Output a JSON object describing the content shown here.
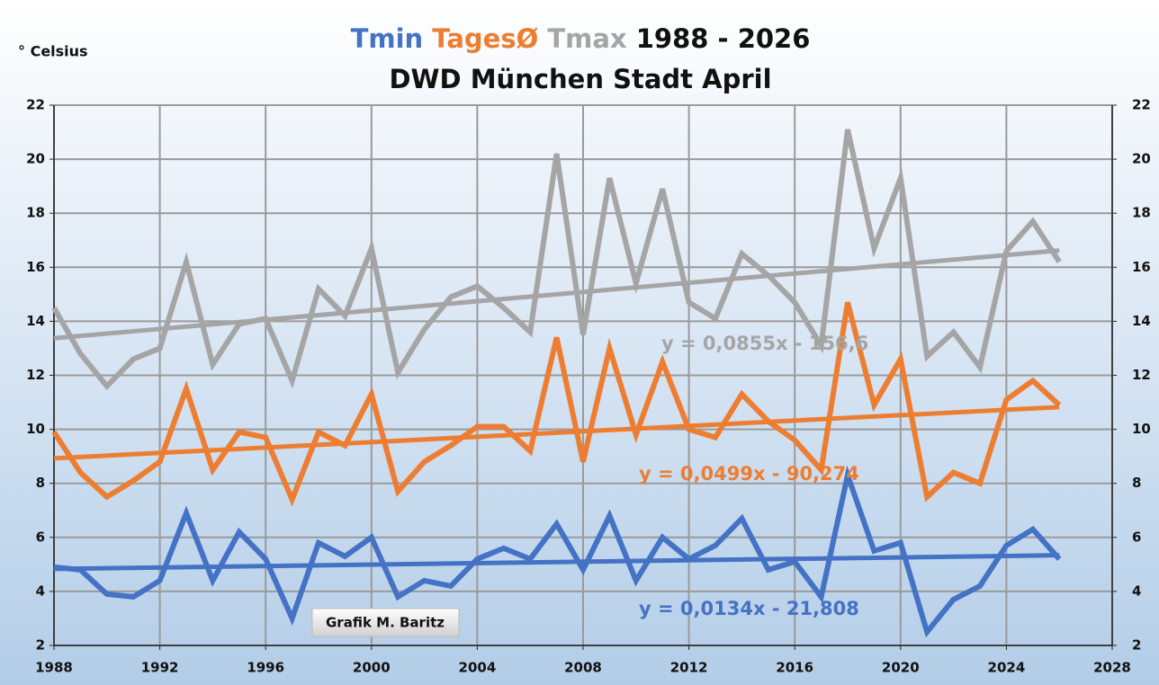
{
  "chart_data": {
    "type": "line",
    "title": "1988 - 2026",
    "subtitle": "DWD München Stadt April",
    "y_label": "° Celsius",
    "annotation": "Grafik M. Baritz",
    "x": [
      1988,
      1989,
      1990,
      1991,
      1992,
      1993,
      1994,
      1995,
      1996,
      1997,
      1998,
      1999,
      2000,
      2001,
      2002,
      2003,
      2004,
      2005,
      2006,
      2007,
      2008,
      2009,
      2010,
      2011,
      2012,
      2013,
      2014,
      2015,
      2016,
      2017,
      2018,
      2019,
      2020,
      2021,
      2022,
      2023,
      2024,
      2025,
      2026
    ],
    "series": [
      {
        "name": "Tmin",
        "color": "#4472c4",
        "values": [
          4.9,
          4.8,
          3.9,
          3.8,
          4.4,
          6.9,
          4.4,
          6.2,
          5.2,
          3.0,
          5.8,
          5.3,
          6.0,
          3.8,
          4.4,
          4.2,
          5.2,
          5.6,
          5.2,
          6.5,
          4.8,
          6.8,
          4.4,
          6.0,
          5.2,
          5.7,
          6.7,
          4.8,
          5.1,
          3.8,
          8.3,
          5.5,
          5.8,
          2.5,
          3.7,
          4.2,
          5.7,
          6.3,
          5.2
        ],
        "trend": {
          "slope": 0.0134,
          "intercept": -21.808,
          "label": "y = 0,0134x - 21,808"
        }
      },
      {
        "name": "TagesØ",
        "color": "#ed7d31",
        "values": [
          9.9,
          8.4,
          7.5,
          8.1,
          8.8,
          11.5,
          8.5,
          9.9,
          9.7,
          7.4,
          9.9,
          9.4,
          11.3,
          7.7,
          8.8,
          9.4,
          10.1,
          10.1,
          9.2,
          13.4,
          8.8,
          13.0,
          9.8,
          12.5,
          10.0,
          9.7,
          11.3,
          10.3,
          9.6,
          8.5,
          14.7,
          10.9,
          12.6,
          7.5,
          8.4,
          8.0,
          11.1,
          11.8,
          10.9
        ],
        "trend": {
          "slope": 0.0499,
          "intercept": -90.274,
          "label": "y = 0,0499x - 90,274"
        }
      },
      {
        "name": "Tmax",
        "color": "#a5a5a5",
        "values": [
          14.5,
          12.8,
          11.6,
          12.6,
          13.0,
          16.2,
          12.4,
          13.9,
          14.1,
          11.8,
          15.2,
          14.2,
          16.7,
          12.1,
          13.7,
          14.9,
          15.3,
          14.5,
          13.6,
          20.2,
          13.5,
          19.3,
          15.4,
          18.9,
          14.7,
          14.1,
          16.5,
          15.7,
          14.7,
          13.1,
          21.1,
          16.7,
          19.3,
          12.7,
          13.6,
          12.3,
          16.6,
          17.7,
          16.2
        ],
        "trend": {
          "slope": 0.0855,
          "intercept": -156.6,
          "label": "y = 0,0855x - 156,6"
        }
      }
    ],
    "xlim": [
      1988,
      2028
    ],
    "xticks": [
      1988,
      1992,
      1996,
      2000,
      2004,
      2008,
      2012,
      2016,
      2020,
      2024,
      2028
    ],
    "ylim": [
      2,
      22
    ],
    "yticks": [
      2,
      4,
      6,
      8,
      10,
      12,
      14,
      16,
      18,
      20,
      22
    ],
    "y2lim": [
      2,
      22
    ],
    "y2ticks": [
      2,
      4,
      6,
      8,
      10,
      12,
      14,
      16,
      18,
      20,
      22
    ],
    "grid": true
  }
}
